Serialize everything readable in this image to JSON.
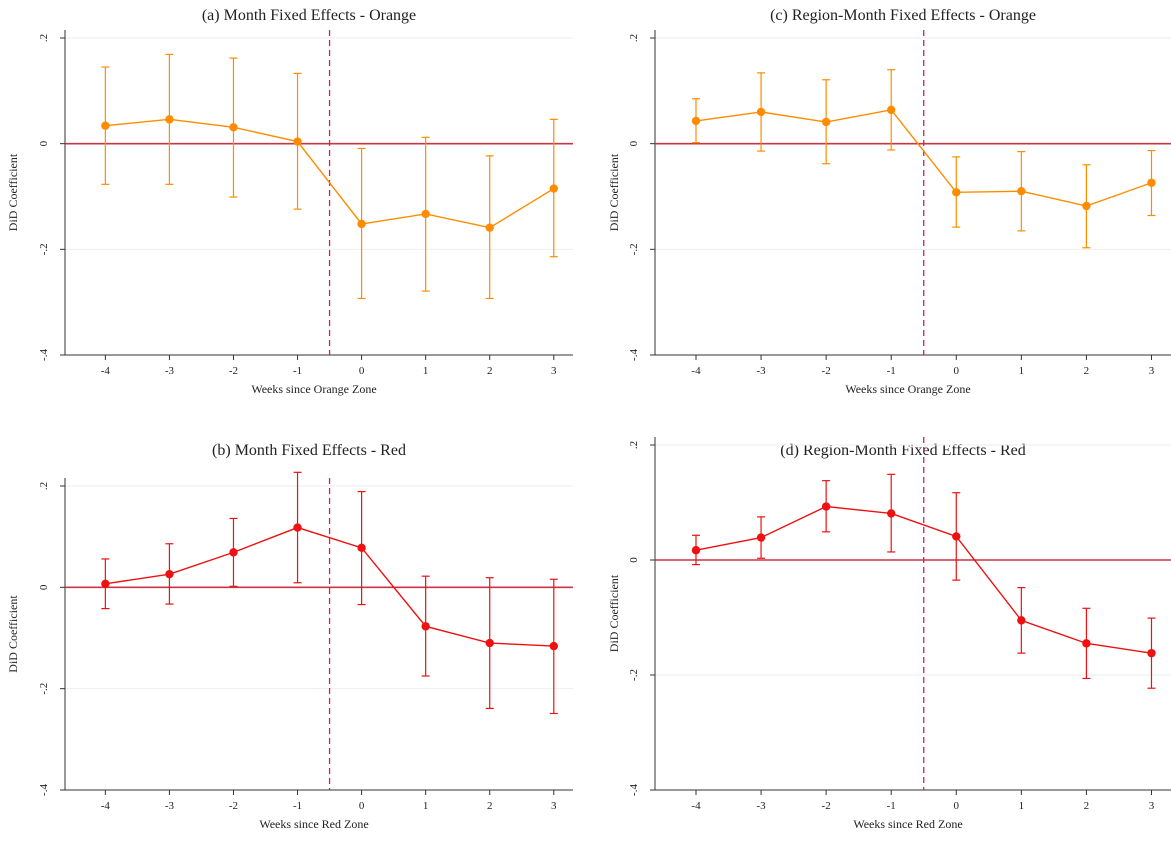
{
  "charts": [
    {
      "type": "line",
      "title": "(a) Month Fixed Effects - Orange",
      "xlabel": "Weeks since Orange Zone",
      "ylabel": "DiD Coefficient",
      "color": "#ff8c00",
      "x": [
        -4,
        -3,
        -2,
        -1,
        0,
        1,
        2,
        3
      ],
      "x_tick_labels": [
        "-4",
        "-3",
        "-2",
        "-1",
        "0",
        "1",
        "2",
        "3"
      ],
      "y": [
        0.034,
        0.046,
        0.031,
        0.004,
        -0.152,
        -0.133,
        -0.159,
        -0.085
      ],
      "ci_low": [
        -0.077,
        -0.077,
        -0.101,
        -0.124,
        -0.293,
        -0.279,
        -0.293,
        -0.214
      ],
      "ci_high": [
        0.145,
        0.169,
        0.162,
        0.133,
        -0.009,
        0.012,
        -0.023,
        0.046
      ],
      "ylim": [
        -0.4,
        0.2
      ],
      "y_ticks": [
        -0.4,
        -0.2,
        0,
        0.2
      ],
      "y_tick_labels": [
        "-.4",
        "-.2",
        "0",
        ".2"
      ],
      "treatment_line_x": -0.5,
      "zero_line_y": 0,
      "grid": true
    },
    {
      "type": "line",
      "title": "(c) Region-Month Fixed Effects - Orange",
      "xlabel": "Weeks since Orange Zone",
      "ylabel": "DiD Coefficient",
      "color": "#ff8c00",
      "x": [
        -4,
        -3,
        -2,
        -1,
        0,
        1,
        2,
        3
      ],
      "x_tick_labels": [
        "-4",
        "-3",
        "-2",
        "-1",
        "0",
        "1",
        "2",
        "3"
      ],
      "y": [
        0.043,
        0.06,
        0.041,
        0.064,
        -0.092,
        -0.09,
        -0.118,
        -0.074
      ],
      "ci_low": [
        0.002,
        -0.014,
        -0.038,
        -0.012,
        -0.158,
        -0.165,
        -0.197,
        -0.136
      ],
      "ci_high": [
        0.085,
        0.134,
        0.121,
        0.14,
        -0.025,
        -0.015,
        -0.04,
        -0.013
      ],
      "ylim": [
        -0.4,
        0.2
      ],
      "y_ticks": [
        -0.4,
        -0.2,
        0,
        0.2
      ],
      "y_tick_labels": [
        "-.4",
        "-.2",
        "0",
        ".2"
      ],
      "treatment_line_x": -0.5,
      "zero_line_y": 0,
      "grid": true
    },
    {
      "type": "line",
      "title": "(b) Month Fixed Effects - Red",
      "xlabel": "Weeks since Red Zone",
      "ylabel": "DiD Coefficient",
      "color": "#ee1111",
      "x": [
        -4,
        -3,
        -2,
        -1,
        0,
        1,
        2,
        3
      ],
      "x_tick_labels": [
        "-4",
        "-3",
        "-2",
        "-1",
        "0",
        "1",
        "2",
        "3"
      ],
      "y": [
        0.007,
        0.026,
        0.069,
        0.118,
        0.078,
        -0.077,
        -0.11,
        -0.116
      ],
      "ci_low": [
        -0.042,
        -0.033,
        0.002,
        0.009,
        -0.034,
        -0.175,
        -0.239,
        -0.249
      ],
      "ci_high": [
        0.056,
        0.086,
        0.136,
        0.227,
        0.189,
        0.022,
        0.019,
        0.016
      ],
      "ylim": [
        -0.4,
        0.2
      ],
      "y_ticks": [
        -0.4,
        -0.2,
        0,
        0.2
      ],
      "y_tick_labels": [
        "-.4",
        "-.2",
        "0",
        ".2"
      ],
      "treatment_line_x": -0.5,
      "zero_line_y": 0,
      "grid": true
    },
    {
      "type": "line",
      "title": "(d) Region-Month Fixed Effects - Red",
      "xlabel": "Weeks since Red Zone",
      "ylabel": "DiD Coefficient",
      "color": "#ee1111",
      "x": [
        -4,
        -3,
        -2,
        -1,
        0,
        1,
        2,
        3
      ],
      "x_tick_labels": [
        "-4",
        "-3",
        "-2",
        "-1",
        "0",
        "1",
        "2",
        "3"
      ],
      "y": [
        0.017,
        0.039,
        0.093,
        0.081,
        0.041,
        -0.105,
        -0.145,
        -0.162
      ],
      "ci_low": [
        -0.008,
        0.003,
        0.049,
        0.014,
        -0.035,
        -0.162,
        -0.206,
        -0.223
      ],
      "ci_high": [
        0.043,
        0.075,
        0.138,
        0.149,
        0.117,
        -0.048,
        -0.084,
        -0.101
      ],
      "ylim": [
        -0.4,
        0.2
      ],
      "y_ticks": [
        -0.4,
        -0.2,
        0,
        0.2
      ],
      "y_tick_labels": [
        "-.4",
        "-.2",
        "0",
        ".2"
      ],
      "treatment_line_x": -0.5,
      "zero_line_y": 0,
      "grid": true
    }
  ],
  "colors": {
    "zero_line": "#cc3344",
    "treatment_line": "#cc2255",
    "grid": "#eeeeee",
    "axis": "#333333"
  }
}
